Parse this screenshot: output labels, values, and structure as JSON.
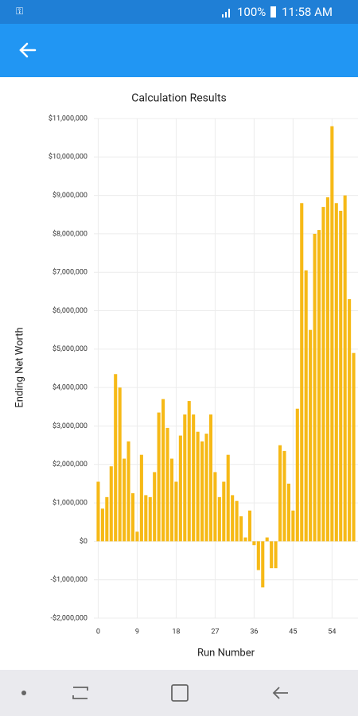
{
  "status_bar": {
    "battery": "100%",
    "time": "11:58 AM"
  },
  "chart_data": {
    "type": "bar",
    "title": "Calculation Results",
    "x_label": "Run Number",
    "y_label": "Ending Net Worth",
    "x": [
      0,
      1,
      2,
      3,
      4,
      5,
      6,
      7,
      8,
      9,
      10,
      11,
      12,
      13,
      14,
      15,
      16,
      17,
      18,
      19,
      20,
      21,
      22,
      23,
      24,
      25,
      26,
      27,
      28,
      29,
      30,
      31,
      32,
      33,
      34,
      35,
      36,
      37,
      38,
      39,
      40,
      41,
      42,
      43,
      44,
      45,
      46,
      47,
      48,
      49,
      50,
      51,
      52,
      53,
      54,
      55,
      56,
      57,
      58,
      59
    ],
    "values": [
      1550000,
      850000,
      1150000,
      1950000,
      4350000,
      4000000,
      2150000,
      2600000,
      1250000,
      250000,
      2250000,
      1200000,
      1150000,
      1800000,
      3350000,
      3700000,
      2950000,
      2150000,
      1550000,
      2750000,
      3300000,
      3650000,
      3300000,
      2850000,
      2600000,
      2800000,
      3300000,
      1800000,
      1150000,
      1550000,
      2250000,
      1200000,
      1050000,
      650000,
      100000,
      800000,
      -100000,
      -750000,
      -1200000,
      100000,
      -700000,
      -700000,
      2500000,
      2350000,
      1500000,
      800000,
      3450000,
      8800000,
      7050000,
      5500000,
      8000000,
      8100000,
      8700000,
      8950000,
      10800000,
      8800000,
      8600000,
      9000000,
      6300000,
      4900000
    ],
    "color": "#f6b916",
    "xlim": [
      -1,
      60
    ],
    "xticks": [
      0,
      9,
      18,
      27,
      36,
      45,
      54
    ],
    "ylim": [
      -2000000,
      11000000
    ],
    "yticks": [
      {
        "value": -2000000,
        "label": "-$2,000,000"
      },
      {
        "value": -1000000,
        "label": "-$1,000,000"
      },
      {
        "value": 0,
        "label": "$0"
      },
      {
        "value": 1000000,
        "label": "$1,000,000"
      },
      {
        "value": 2000000,
        "label": "$2,000,000"
      },
      {
        "value": 3000000,
        "label": "$3,000,000"
      },
      {
        "value": 4000000,
        "label": "$4,000,000"
      },
      {
        "value": 5000000,
        "label": "$5,000,000"
      },
      {
        "value": 6000000,
        "label": "$6,000,000"
      },
      {
        "value": 7000000,
        "label": "$7,000,000"
      },
      {
        "value": 8000000,
        "label": "$8,000,000"
      },
      {
        "value": 9000000,
        "label": "$9,000,000"
      },
      {
        "value": 10000000,
        "label": "$10,000,000"
      },
      {
        "value": 11000000,
        "label": "$11,000,000"
      }
    ],
    "grid": true
  }
}
